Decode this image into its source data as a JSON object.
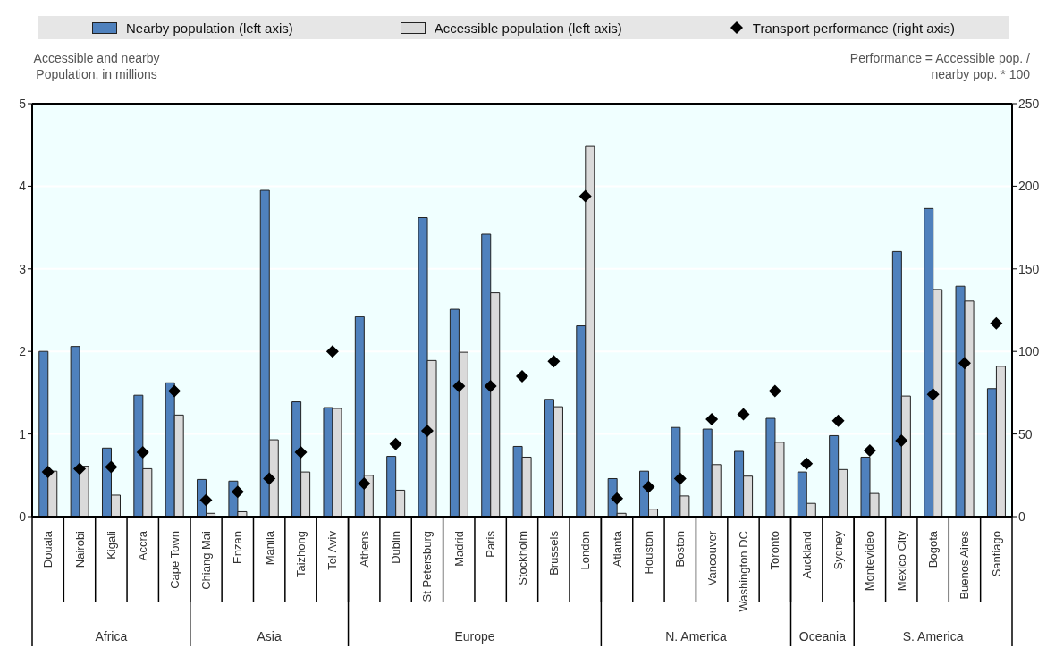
{
  "chart_data": {
    "type": "bar",
    "ylabel": "Accessible and nearby Population, in millions",
    "y2label": "Performance = Accessible pop. / nearby pop. * 100",
    "categories": [
      "Douala",
      "Nairobi",
      "Kigali",
      "Accra",
      "Cape Town",
      "Chiang Mai",
      "Enzan",
      "Manila",
      "Taizhong",
      "Tel Aviv",
      "Athens",
      "Dublin",
      "St Petersburg",
      "Madrid",
      "Paris",
      "Stockholm",
      "Brussels",
      "London",
      "Atlanta",
      "Houston",
      "Boston",
      "Vancouver",
      "Washington DC",
      "Toronto",
      "Auckland",
      "Sydney",
      "Montevideo",
      "Mexico City",
      "Bogota",
      "Buenos Aires",
      "Santiago"
    ],
    "series": [
      {
        "name": "Nearby population (left axis)",
        "color": "#4f81bd",
        "values": [
          2.0,
          2.06,
          0.83,
          1.47,
          1.62,
          0.45,
          0.43,
          3.95,
          1.39,
          1.32,
          2.42,
          0.73,
          3.62,
          2.51,
          3.42,
          0.85,
          1.42,
          2.31,
          0.46,
          0.55,
          1.08,
          1.06,
          0.79,
          1.19,
          0.54,
          0.98,
          0.72,
          3.21,
          3.73,
          2.79,
          1.55
        ]
      },
      {
        "name": "Accessible population (left axis)",
        "color": "#dadada",
        "values": [
          0.55,
          0.61,
          0.26,
          0.58,
          1.23,
          0.04,
          0.06,
          0.93,
          0.54,
          1.31,
          0.5,
          0.32,
          1.89,
          1.99,
          2.71,
          0.72,
          1.33,
          4.49,
          0.04,
          0.09,
          0.25,
          0.63,
          0.49,
          0.9,
          0.16,
          0.57,
          0.28,
          1.46,
          2.75,
          2.61,
          1.82
        ]
      },
      {
        "name": "Transport performance (right axis)",
        "type": "scatter",
        "axis": "y2",
        "color": "#000000",
        "values": [
          27,
          29,
          30,
          39,
          76,
          10,
          15,
          23,
          39,
          100,
          20,
          44,
          52,
          79,
          79,
          85,
          94,
          194,
          11,
          18,
          23,
          59,
          62,
          76,
          32,
          58,
          40,
          46,
          74,
          93,
          117
        ]
      }
    ],
    "ylim": [
      0,
      5
    ],
    "yticks": [
      0,
      1,
      2,
      3,
      4,
      5
    ],
    "y2lim": [
      0,
      250
    ],
    "y2ticks": [
      0,
      50,
      100,
      150,
      200,
      250
    ],
    "grid": "y",
    "legend": "top",
    "marker": "diamond",
    "annotations": [
      "Africa",
      "Asia",
      "Europe",
      "N. America",
      "Oceania",
      "S. America"
    ]
  }
}
